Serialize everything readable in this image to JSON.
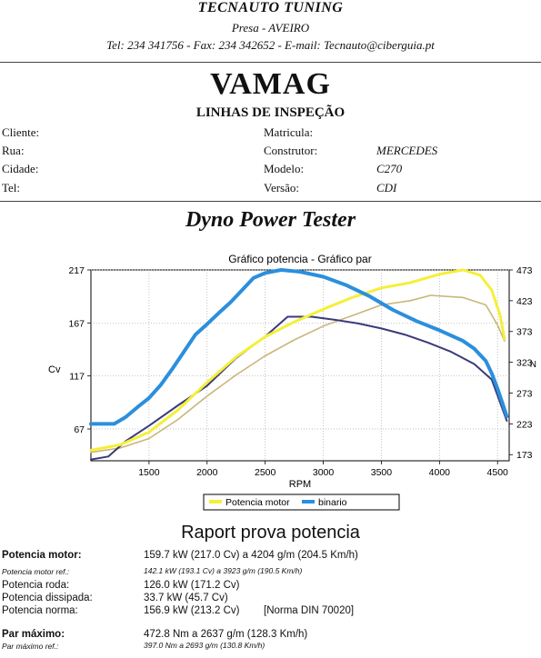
{
  "header": {
    "company": "TECNAUTO TUNING",
    "address": "Presa - AVEIRO",
    "contacts": "Tel: 234 341756 - Fax: 234 342652 - E-mail: Tecnauto@ciberguia.pt"
  },
  "brand": {
    "name": "VAMAG",
    "subtitle": "LINHAS DE INSPEÇÃO"
  },
  "client": {
    "labels": [
      "Cliente:",
      "Rua:",
      "Cidade:",
      "Tel:"
    ]
  },
  "vehicle": {
    "rows": [
      {
        "label": "Matricula:",
        "value": ""
      },
      {
        "label": "Construtor:",
        "value": "MERCEDES"
      },
      {
        "label": "Modelo:",
        "value": "C270"
      },
      {
        "label": "Versão:",
        "value": "CDI"
      }
    ]
  },
  "section_title": "Dyno Power Tester",
  "chart_data": {
    "type": "line",
    "title": "Gráfico potencia - Gráfico par",
    "xlabel": "RPM",
    "ylabel_left": "Cv",
    "ylabel_right": "N",
    "x_ticks": [
      1500,
      2000,
      2500,
      3000,
      3500,
      4000,
      4500
    ],
    "y_ticks_left": [
      67,
      117,
      167,
      217
    ],
    "y_ticks_right": [
      173,
      223,
      273,
      323,
      373,
      423,
      473
    ],
    "xlim": [
      1000,
      4600
    ],
    "ylim_left": [
      37,
      217
    ],
    "ylim_right": [
      163,
      473
    ],
    "grid": true,
    "legend_position": "bottom",
    "series": [
      {
        "name": "Potencia motor",
        "axis": "left",
        "color": "#f5ef3a",
        "x": [
          1000,
          1250,
          1500,
          1750,
          2000,
          2250,
          2500,
          2750,
          3000,
          3250,
          3500,
          3750,
          4000,
          4204,
          4350,
          4450,
          4520,
          4560
        ],
        "y": [
          47,
          52,
          64,
          85,
          111,
          135,
          154,
          168,
          180,
          191,
          200,
          205,
          213,
          217,
          212,
          198,
          175,
          152
        ]
      },
      {
        "name": "binario",
        "axis": "right",
        "color": "#2b8fdc",
        "x": [
          1000,
          1100,
          1200,
          1300,
          1400,
          1500,
          1600,
          1700,
          1800,
          1900,
          2000,
          2100,
          2200,
          2300,
          2400,
          2500,
          2637,
          2800,
          3000,
          3200,
          3400,
          3600,
          3800,
          4000,
          4200,
          4300,
          4400,
          4450,
          4500,
          4540,
          4580
        ],
        "y": [
          223,
          223,
          223,
          234,
          250,
          265,
          286,
          312,
          340,
          368,
          385,
          403,
          420,
          440,
          460,
          468,
          473,
          470,
          462,
          448,
          430,
          408,
          390,
          375,
          358,
          345,
          325,
          305,
          280,
          258,
          235
        ]
      },
      {
        "name": "",
        "axis": "left",
        "color": "#c8b67a",
        "x": [
          1000,
          1250,
          1500,
          1750,
          2000,
          2250,
          2500,
          2750,
          3000,
          3250,
          3500,
          3750,
          3923,
          4200,
          4400,
          4500,
          4560
        ],
        "y": [
          45,
          49,
          58,
          76,
          98,
          118,
          136,
          151,
          164,
          174,
          184,
          188,
          193,
          191,
          184,
          165,
          150
        ]
      },
      {
        "name": "",
        "axis": "right",
        "color": "#3a3a7a",
        "x": [
          1000,
          1150,
          1300,
          1500,
          1750,
          2000,
          2250,
          2500,
          2693,
          2900,
          3100,
          3300,
          3500,
          3700,
          3900,
          4100,
          4300,
          4450,
          4580
        ],
        "y": [
          165,
          170,
          195,
          220,
          253,
          285,
          330,
          365,
          397,
          397,
          392,
          386,
          378,
          368,
          355,
          340,
          320,
          295,
          228
        ]
      }
    ]
  },
  "report": {
    "title": "Raport prova potencia",
    "rows": [
      {
        "label": "Potencia motor:",
        "value": "159.7 kW (217.0 Cv) a 4204 g/m (204.5 Km/h)",
        "bold": true
      },
      {
        "label": "Potencia motor ref.:",
        "value": "142.1 kW (193.1 Cv) a 3923 g/m (190.5 Km/h)",
        "small": true
      },
      {
        "label": "Potencia roda:",
        "value": "126.0 kW (171.2 Cv)"
      },
      {
        "label": "Potencia dissipada:",
        "value": "33.7 kW (45.7 Cv)"
      },
      {
        "label": "Potencia norma:",
        "value": "156.9 kW (213.2 Cv)",
        "extra": "[Norma DIN 70020]"
      },
      {
        "label": "Par máximo:",
        "value": "472.8 Nm a 2637 g/m (128.3 Km/h)",
        "bold": true
      },
      {
        "label": "Par máximo ref.:",
        "value": "397.0 Nm a 2693 g/m (130.8 Km/h)",
        "small": true
      }
    ]
  }
}
